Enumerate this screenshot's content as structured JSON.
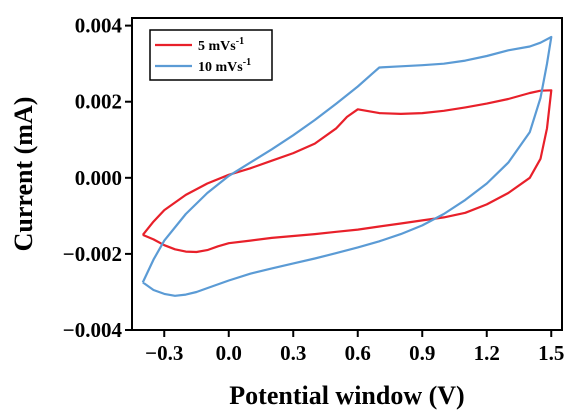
{
  "chart_data": {
    "type": "line",
    "title": "",
    "xlabel": "Potential window (V)",
    "ylabel": "Current (mA)",
    "xlim": [
      -0.45,
      1.55
    ],
    "ylim": [
      -0.004,
      0.0042
    ],
    "x_ticks": [
      -0.3,
      0.0,
      0.3,
      0.6,
      0.9,
      1.2,
      1.5
    ],
    "x_tick_labels": [
      "−0.3",
      "0.0",
      "0.3",
      "0.6",
      "0.9",
      "1.2",
      "1.5"
    ],
    "y_ticks": [
      -0.004,
      -0.002,
      0.0,
      0.002,
      0.004
    ],
    "y_tick_labels": [
      "−0.004",
      "−0.002",
      "0.000",
      "0.002",
      "0.004"
    ],
    "grid": false,
    "legend_position": "top-left",
    "series": [
      {
        "name": "5 mVs",
        "name_sup": "-1",
        "color": "#e8202a",
        "points": [
          [
            -0.4,
            -0.0015
          ],
          [
            -0.35,
            -0.00162
          ],
          [
            -0.3,
            -0.00177
          ],
          [
            -0.25,
            -0.00188
          ],
          [
            -0.2,
            -0.00194
          ],
          [
            -0.15,
            -0.00195
          ],
          [
            -0.1,
            -0.0019
          ],
          [
            -0.05,
            -0.0018
          ],
          [
            0.0,
            -0.00172
          ],
          [
            0.1,
            -0.00165
          ],
          [
            0.2,
            -0.00158
          ],
          [
            0.3,
            -0.00153
          ],
          [
            0.4,
            -0.00148
          ],
          [
            0.5,
            -0.00142
          ],
          [
            0.6,
            -0.00136
          ],
          [
            0.7,
            -0.00128
          ],
          [
            0.8,
            -0.0012
          ],
          [
            0.9,
            -0.00112
          ],
          [
            1.0,
            -0.00104
          ],
          [
            1.1,
            -0.00092
          ],
          [
            1.2,
            -0.0007
          ],
          [
            1.3,
            -0.0004
          ],
          [
            1.4,
            0.0
          ],
          [
            1.45,
            0.0005
          ],
          [
            1.48,
            0.0013
          ],
          [
            1.5,
            0.0023
          ],
          [
            1.45,
            0.00229
          ],
          [
            1.4,
            0.00223
          ],
          [
            1.3,
            0.00207
          ],
          [
            1.2,
            0.00195
          ],
          [
            1.1,
            0.00185
          ],
          [
            1.0,
            0.00176
          ],
          [
            0.9,
            0.0017
          ],
          [
            0.8,
            0.00168
          ],
          [
            0.7,
            0.0017
          ],
          [
            0.6,
            0.0018
          ],
          [
            0.55,
            0.0016
          ],
          [
            0.5,
            0.0013
          ],
          [
            0.4,
            0.0009
          ],
          [
            0.3,
            0.00065
          ],
          [
            0.2,
            0.00045
          ],
          [
            0.1,
            0.00025
          ],
          [
            0.0,
            8e-05
          ],
          [
            -0.1,
            -0.00015
          ],
          [
            -0.2,
            -0.00045
          ],
          [
            -0.3,
            -0.00085
          ],
          [
            -0.35,
            -0.00115
          ],
          [
            -0.4,
            -0.0015
          ]
        ]
      },
      {
        "name": "10 mVs",
        "name_sup": "-1",
        "color": "#5b9bd5",
        "points": [
          [
            -0.4,
            -0.00275
          ],
          [
            -0.35,
            -0.00295
          ],
          [
            -0.3,
            -0.00305
          ],
          [
            -0.25,
            -0.0031
          ],
          [
            -0.2,
            -0.00307
          ],
          [
            -0.15,
            -0.003
          ],
          [
            -0.1,
            -0.0029
          ],
          [
            0.0,
            -0.0027
          ],
          [
            0.1,
            -0.00252
          ],
          [
            0.2,
            -0.00238
          ],
          [
            0.3,
            -0.00225
          ],
          [
            0.4,
            -0.00212
          ],
          [
            0.5,
            -0.00198
          ],
          [
            0.6,
            -0.00183
          ],
          [
            0.7,
            -0.00167
          ],
          [
            0.8,
            -0.00148
          ],
          [
            0.9,
            -0.00125
          ],
          [
            1.0,
            -0.00095
          ],
          [
            1.1,
            -0.00058
          ],
          [
            1.2,
            -0.00015
          ],
          [
            1.3,
            0.0004
          ],
          [
            1.4,
            0.0012
          ],
          [
            1.45,
            0.0021
          ],
          [
            1.48,
            0.003
          ],
          [
            1.5,
            0.0037
          ],
          [
            1.45,
            0.00355
          ],
          [
            1.4,
            0.00345
          ],
          [
            1.3,
            0.00335
          ],
          [
            1.2,
            0.0032
          ],
          [
            1.1,
            0.00308
          ],
          [
            1.0,
            0.003
          ],
          [
            0.9,
            0.00296
          ],
          [
            0.8,
            0.00293
          ],
          [
            0.7,
            0.0029
          ],
          [
            0.67,
            0.00275
          ],
          [
            0.6,
            0.0024
          ],
          [
            0.5,
            0.00195
          ],
          [
            0.4,
            0.00152
          ],
          [
            0.3,
            0.00112
          ],
          [
            0.2,
            0.00075
          ],
          [
            0.1,
            0.0004
          ],
          [
            0.0,
            5e-05
          ],
          [
            -0.1,
            -0.0004
          ],
          [
            -0.2,
            -0.00095
          ],
          [
            -0.3,
            -0.00165
          ],
          [
            -0.35,
            -0.00215
          ],
          [
            -0.4,
            -0.00275
          ]
        ]
      }
    ]
  }
}
